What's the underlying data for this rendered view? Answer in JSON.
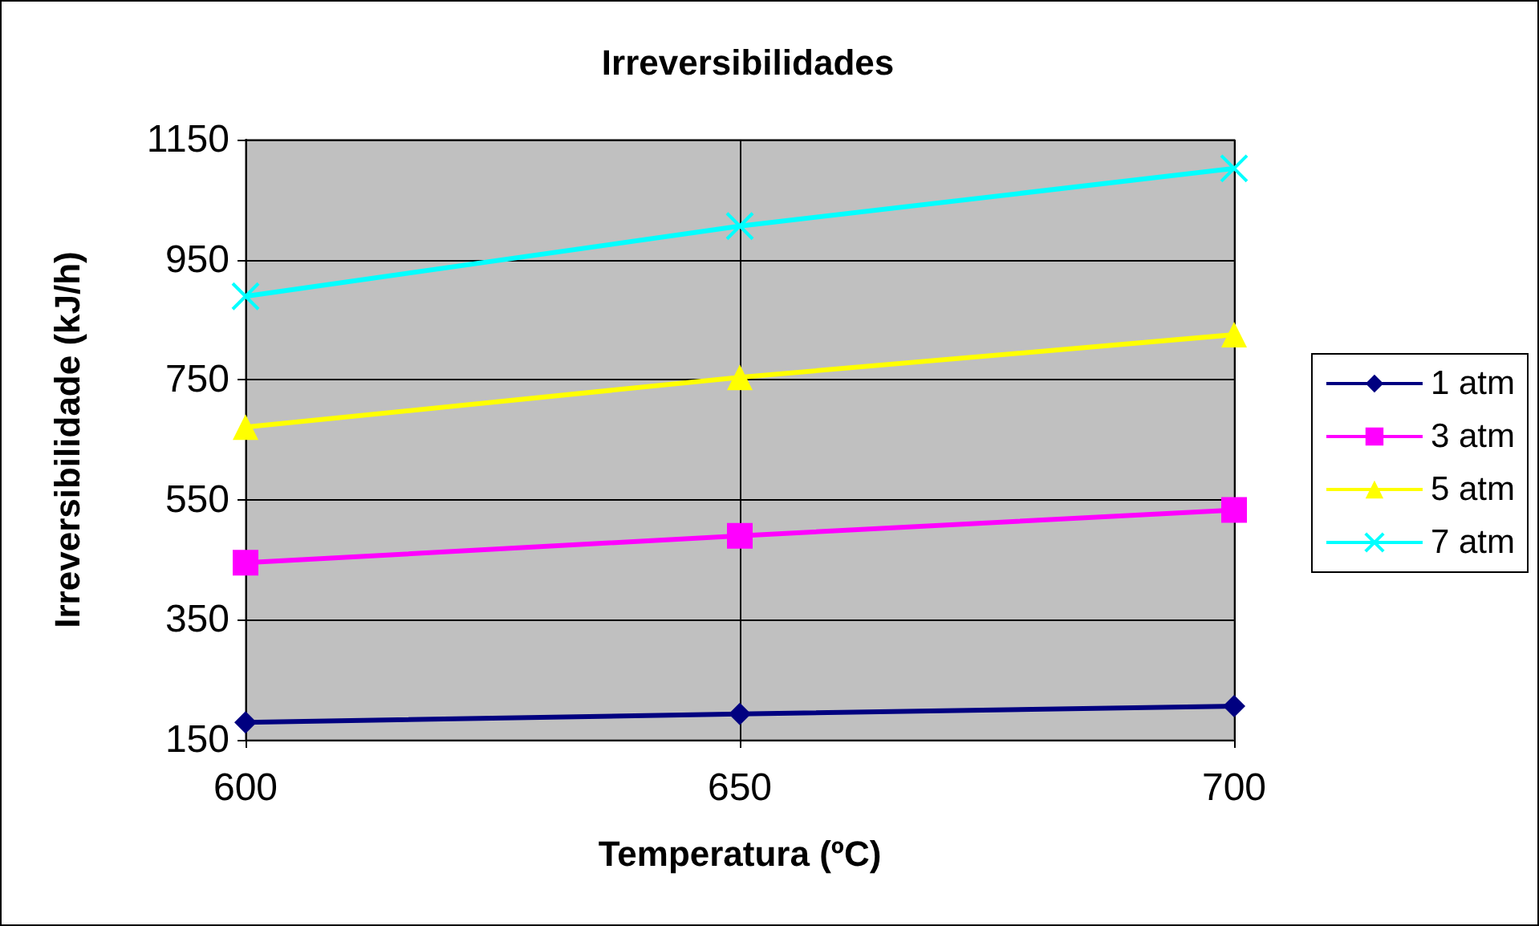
{
  "chart_data": {
    "type": "line",
    "title": "Irreversibilidades",
    "xlabel": "Temperatura (ºC)",
    "ylabel": "Irreversibilidade (kJ/h)",
    "x": [
      600,
      650,
      700
    ],
    "series": [
      {
        "name": "1 atm",
        "color": "#000080",
        "marker": "diamond",
        "values": [
          179,
          193,
          206
        ]
      },
      {
        "name": "3 atm",
        "color": "#ff00ff",
        "marker": "square",
        "values": [
          445,
          490,
          533
        ]
      },
      {
        "name": "5 atm",
        "color": "#ffff00",
        "marker": "triangle",
        "values": [
          671,
          754,
          825
        ]
      },
      {
        "name": "7 atm",
        "color": "#00ffff",
        "marker": "cross",
        "values": [
          889,
          1006,
          1102
        ]
      }
    ],
    "xlim": [
      600,
      700
    ],
    "xticks": [
      600,
      650,
      700
    ],
    "ylim": [
      150,
      1150
    ],
    "yticks": [
      150,
      350,
      550,
      750,
      950,
      1150
    ],
    "grid": true,
    "legend": "right",
    "line_style": "solid"
  }
}
